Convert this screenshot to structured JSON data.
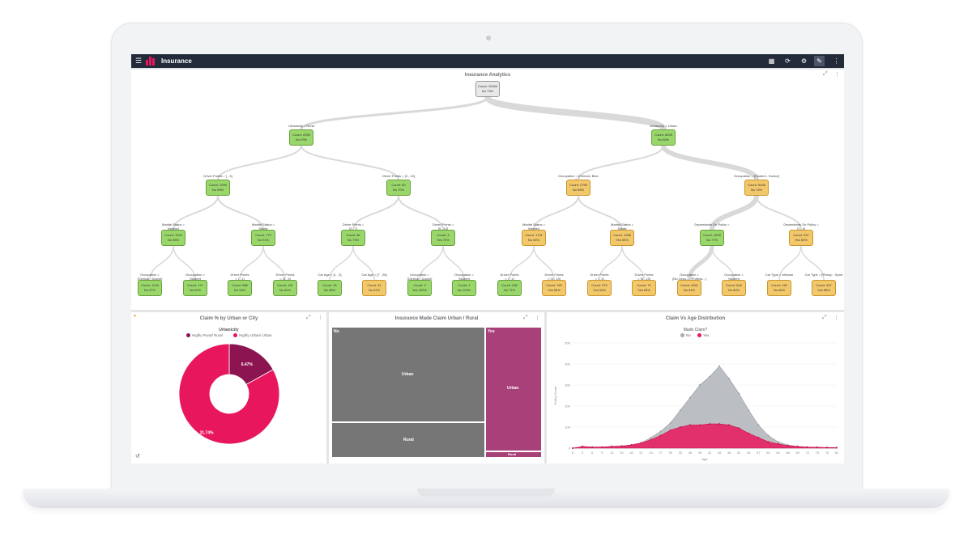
{
  "app": {
    "title": "Insurance"
  },
  "toolbar": {
    "icons": [
      "grid-icon",
      "refresh-icon",
      "settings-icon",
      "wrench-icon",
      "more-icon"
    ]
  },
  "tree_panel": {
    "title": "Insurance Analytics",
    "root": {
      "count": "Count: 10264",
      "pct": "No 73%"
    },
    "level1": [
      {
        "edge": "Urbanicity = Rural",
        "count": "Count: 2059",
        "pct": "No 93%"
      },
      {
        "edge": "Urbanicity = Urban",
        "count": "Count: 8205",
        "pct": "No 68%"
      }
    ],
    "level2": [
      {
        "edge": "Driver Points = [ , 3]",
        "count": "Count: 1999",
        "pct": "No 94%"
      },
      {
        "edge": "Driver Points = [3 , 13]",
        "count": "Count: 60",
        "pct": "No 70%"
      },
      {
        "edge": "Occupation = [Clerical, Blue Co...",
        "count": "Count: 2759",
        "pct": "No 56%"
      },
      {
        "edge": "Occupation = [Student , Doctor]",
        "count": "Count: 5446",
        "pct": "No 74%"
      }
    ],
    "level3": [
      {
        "edge": "Marital Status =\nMarried",
        "count": "Count: 1220",
        "pct": "No 96%"
      },
      {
        "edge": "Marital Status =\nSingle",
        "count": "Count: 779",
        "pct": "No 91%"
      },
      {
        "edge": "Driver Points =\n[3 , 7]",
        "count": "Count: 56",
        "pct": "No 73%"
      },
      {
        "edge": "Driver Points =\n[9 , 13]",
        "count": "Count: 4",
        "pct": "Yes 75%"
      },
      {
        "edge": "Marital Status =\nMarried",
        "count": "Count: 1701",
        "pct": "No 64%"
      },
      {
        "edge": "Marital Status =\nSingle",
        "count": "Count: 1058",
        "pct": "Yes 53%"
      },
      {
        "edge": "Dependants On Policy =",
        "count": "Count: 4909",
        "pct": "No 77%"
      },
      {
        "edge": "Dependants On Policy =\n[1 , 4]",
        "count": "Count: 537",
        "pct": "Yes 53%"
      }
    ],
    "level4": [
      {
        "edge": "Occupation =\n[Clerical , Doctor]",
        "count": "Count: 1049",
        "pct": "No 97%"
      },
      {
        "edge": "Occupation =\nStudent",
        "count": "Count: 171",
        "pct": "No 92%"
      },
      {
        "edge": "Driver Points\n= [ , 1]",
        "count": "Count: 588",
        "pct": "No 94%"
      },
      {
        "edge": "Driver Points\n= [2 , 5]",
        "count": "Count: 191",
        "pct": "No 81%"
      },
      {
        "edge": "Car Age = [1 , 3]",
        "count": "Count: 25",
        "pct": "No 88%"
      },
      {
        "edge": "Car Age = [7 , 28]",
        "count": "Count: 31",
        "pct": "No 61%"
      },
      {
        "edge": "Occupation =\n[Clerical , Doctor]",
        "count": "Count: 3",
        "pct": "Yes 100%"
      },
      {
        "edge": "Occupation =\nStudent",
        "count": "Count: 1",
        "pct": "No 100%"
      },
      {
        "edge": "Driver Points\n= [ , 1]",
        "count": "Count: 938",
        "pct": "No 71%"
      },
      {
        "edge": "Driver Points\n= [4 , 13]",
        "count": "Count: 763",
        "pct": "Yes 55%"
      },
      {
        "edge": "Driver Points\n= [ , 3]",
        "count": "Count: 979",
        "pct": "Yes 54%"
      },
      {
        "edge": "Driver Points\n= [8 , 13]",
        "count": "Count: 79",
        "pct": "Yes 63%"
      },
      {
        "edge": "Occupation =\n[No Occu... , Profess...]",
        "count": "Count: 4391",
        "pct": "No 81%"
      },
      {
        "edge": "Occupation =\nStudent",
        "count": "Count: 518",
        "pct": "No 50%"
      },
      {
        "edge": "Car Type = Minivan",
        "count": "Count: 130",
        "pct": "No 66%"
      },
      {
        "edge": "Car Type = [Pickup , Sport",
        "count": "Count: 407",
        "pct": "Yes 58%"
      }
    ]
  },
  "donut_panel": {
    "title": "Claim % by Urban or City",
    "legend_title": "Urbanicity",
    "legend": [
      "Highly Rural/ Rural",
      "Highly Urban/ Urban"
    ],
    "colors": {
      "rural": "#8c1450",
      "urban": "#e8175d"
    }
  },
  "treemap_panel": {
    "title": "Insurance Made Claim Urban / Rural",
    "cells": {
      "no": "No",
      "yes": "Yes",
      "no_urban": "Urban",
      "no_rural": "Rural",
      "yes_urban": "Urban",
      "yes_rural": "Rural"
    }
  },
  "area_panel": {
    "title": "Claim Vs Age Distribution",
    "legend_title": "Made Claim?",
    "legend": [
      "No",
      "Yes"
    ]
  },
  "chart_data": [
    {
      "type": "pie",
      "labels": [
        "Highly Rural/ Rural",
        "Highly Urban/ Urban"
      ],
      "values": [
        6.47,
        31.74
      ],
      "value_labels": [
        "6.47%",
        "31.74%"
      ],
      "legend": "top-center"
    },
    {
      "type": "area",
      "xlabel": "Age",
      "ylabel": "Policy Count",
      "ylim": [
        0,
        500
      ],
      "yticks": [
        0,
        100,
        200,
        300,
        400,
        500
      ],
      "xticks": [
        0,
        3,
        6,
        9,
        12,
        15,
        18,
        21,
        24,
        27,
        30,
        33,
        36,
        39,
        42,
        45,
        48,
        51,
        54,
        57,
        60,
        63,
        66,
        69,
        72,
        75,
        78,
        81
      ],
      "x": [
        0,
        3,
        6,
        9,
        12,
        15,
        18,
        21,
        24,
        27,
        30,
        33,
        36,
        39,
        42,
        45,
        48,
        51,
        54,
        57,
        60,
        63,
        66,
        69,
        72,
        75,
        78,
        81
      ],
      "series": [
        {
          "name": "No",
          "values": [
            0,
            5,
            5,
            5,
            8,
            10,
            15,
            25,
            50,
            80,
            120,
            180,
            240,
            300,
            340,
            390,
            330,
            260,
            180,
            110,
            60,
            30,
            15,
            8,
            5,
            4,
            3,
            2
          ]
        },
        {
          "name": "Yes",
          "values": [
            0,
            8,
            5,
            5,
            8,
            10,
            15,
            25,
            40,
            60,
            85,
            100,
            110,
            110,
            115,
            115,
            110,
            95,
            70,
            50,
            30,
            20,
            12,
            8,
            5,
            4,
            3,
            2
          ]
        }
      ],
      "legend": "top-center"
    }
  ]
}
